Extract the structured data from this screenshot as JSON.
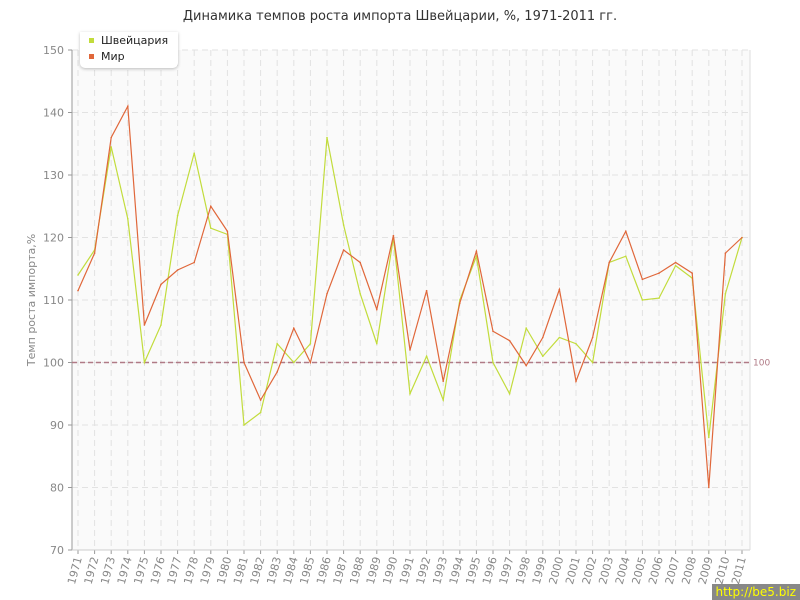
{
  "chart_data": {
    "type": "line",
    "title": "Динамика темпов роста импорта Швейцарии, %, 1971-2011 гг.",
    "ylabel": "Темп роста импорта,%",
    "xlabel": "",
    "ylim": [
      70,
      150
    ],
    "yticks": [
      70,
      80,
      90,
      100,
      110,
      120,
      130,
      140,
      150
    ],
    "grid": true,
    "legend": "top-left",
    "reference_line": {
      "value": 100,
      "label": "100",
      "color": "#b07a86"
    },
    "x": [
      1971,
      1972,
      1973,
      1974,
      1975,
      1976,
      1977,
      1978,
      1979,
      1980,
      1981,
      1982,
      1983,
      1984,
      1985,
      1986,
      1987,
      1988,
      1989,
      1990,
      1991,
      1992,
      1993,
      1994,
      1995,
      1996,
      1997,
      1998,
      1999,
      2000,
      2001,
      2002,
      2003,
      2004,
      2005,
      2006,
      2007,
      2008,
      2009,
      2010,
      2011
    ],
    "series": [
      {
        "name": "Швейцария",
        "color": "#c2dc3c",
        "values": [
          114,
          118,
          134.5,
          123,
          100,
          106,
          123.5,
          133.5,
          121.5,
          120.5,
          90,
          92,
          103,
          100,
          103,
          136,
          122,
          111,
          103,
          120,
          95,
          101,
          94,
          110,
          117,
          100,
          95,
          105.5,
          101,
          104,
          103,
          100,
          116,
          117,
          110,
          110.3,
          115.5,
          113.5,
          88,
          111,
          120
        ]
      },
      {
        "name": "Мир",
        "color": "#e0673a",
        "values": [
          111.5,
          117.5,
          136,
          141,
          106,
          112.5,
          114.8,
          116,
          125,
          121,
          100,
          94,
          98.5,
          105.5,
          100,
          111,
          118,
          116,
          108.5,
          120.3,
          102,
          111.5,
          97,
          109.5,
          117.8,
          105,
          103.5,
          99.5,
          104,
          111.7,
          97,
          104,
          116,
          121,
          113.3,
          114.3,
          116,
          114.3,
          80,
          117.5,
          120
        ]
      }
    ]
  },
  "watermark": "http://be5.biz"
}
